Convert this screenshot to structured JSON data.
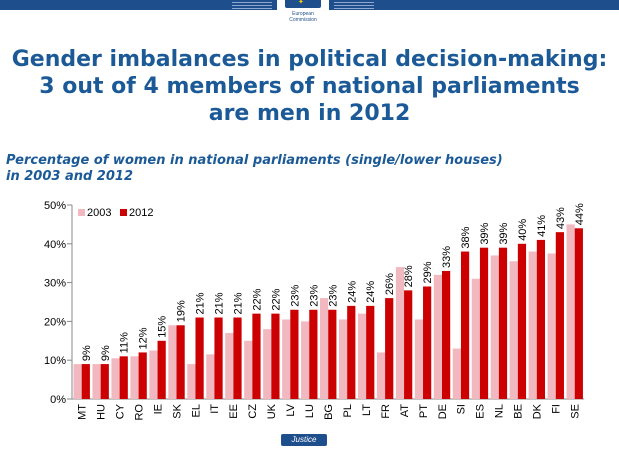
{
  "header": {
    "logo_line1": "European",
    "logo_line2": "Commission"
  },
  "title_lines": [
    "Gender imbalances in political decision-making:",
    "3 out of 4 members of national parliaments",
    "are men in 2012"
  ],
  "subtitle_lines": [
    "Percentage of women in national parliaments (single/lower houses)",
    "in 2003 and 2012"
  ],
  "footer": {
    "label": "Justice"
  },
  "colors": {
    "brand_blue": "#1b5a97",
    "series_2003": "#f2b8c0",
    "series_2012": "#cc0000"
  },
  "chart_data": {
    "type": "bar",
    "title": "Percentage of women in national parliaments (single/lower houses) in 2003 and 2012",
    "xlabel": "",
    "ylabel": "",
    "ylim": [
      0,
      50
    ],
    "yticks": [
      "0%",
      "10%",
      "20%",
      "30%",
      "40%",
      "50%"
    ],
    "grid": false,
    "legend_position": "top-left",
    "categories": [
      "MT",
      "HU",
      "CY",
      "RO",
      "IE",
      "SK",
      "EL",
      "IT",
      "EE",
      "CZ",
      "UK",
      "LV",
      "LU",
      "BG",
      "PL",
      "LT",
      "FR",
      "AT",
      "PT",
      "DE",
      "SI",
      "ES",
      "NL",
      "BE",
      "DK",
      "FI",
      "SE"
    ],
    "series": [
      {
        "name": "2003",
        "values": [
          9,
          9,
          10.5,
          11,
          12.5,
          19,
          9,
          11.5,
          17,
          15,
          18,
          20.5,
          20,
          26,
          20.5,
          22,
          12,
          34,
          20.5,
          32,
          13,
          31,
          37,
          35.5,
          38,
          37.5,
          45
        ]
      },
      {
        "name": "2012",
        "values": [
          9,
          9,
          11,
          12,
          15,
          19,
          21,
          21,
          21,
          22,
          22,
          23,
          23,
          23,
          24,
          24,
          26,
          28,
          29,
          33,
          38,
          39,
          39,
          40,
          41,
          43,
          44
        ],
        "labels": [
          "9%",
          "9%",
          "11%",
          "12%",
          "15%",
          "19%",
          "21%",
          "21%",
          "21%",
          "22%",
          "22%",
          "23%",
          "23%",
          "23%",
          "24%",
          "24%",
          "26%",
          "28%",
          "29%",
          "33%",
          "38%",
          "39%",
          "39%",
          "40%",
          "41%",
          "43%",
          "44%"
        ]
      }
    ]
  }
}
